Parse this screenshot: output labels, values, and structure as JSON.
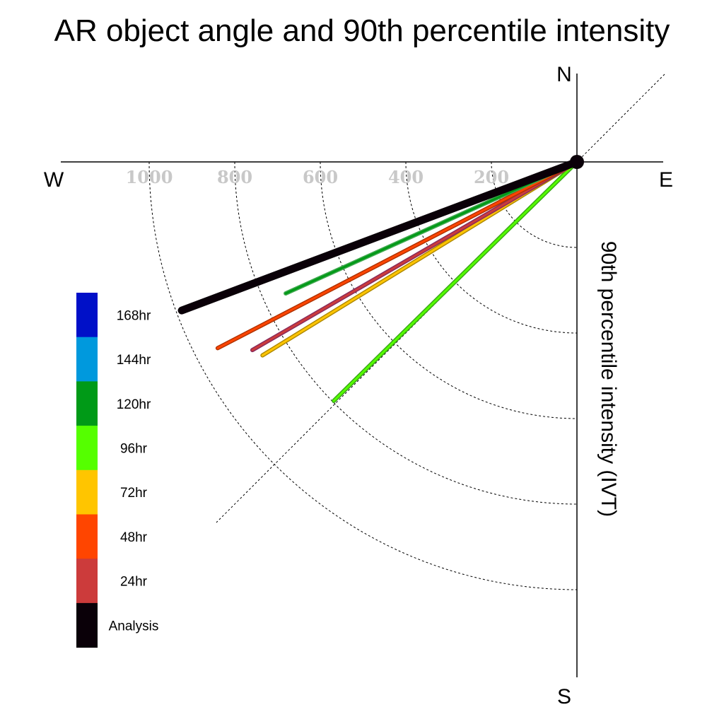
{
  "chart_data": {
    "type": "polar-vector",
    "title": "AR object angle and 90th percentile intensity",
    "ylabel": "90th percentile intensity (IVT)",
    "compass": {
      "north": "N",
      "south": "S",
      "east": "E",
      "west": "W"
    },
    "radial_ticks": [
      200,
      400,
      600,
      800,
      1000
    ],
    "radial_tick_labels": [
      "200",
      "400",
      "600",
      "800",
      "1000"
    ],
    "radial_grid": [
      200,
      400,
      600,
      800,
      1000
    ],
    "rlim": [
      0,
      1200
    ],
    "legend": {
      "placement": "left",
      "entries": [
        {
          "label": "168hr",
          "color": "#0010c8"
        },
        {
          "label": "144hr",
          "color": "#0099dd"
        },
        {
          "label": "120hr",
          "color": "#009a17"
        },
        {
          "label": "96hr",
          "color": "#55ff00"
        },
        {
          "label": "72hr",
          "color": "#ffc500"
        },
        {
          "label": "48hr",
          "color": "#ff4500"
        },
        {
          "label": "24hr",
          "color": "#cc3b3b"
        },
        {
          "label": "Analysis",
          "color": "#0a0008"
        }
      ]
    },
    "series": [
      {
        "name": "96hr",
        "angle_deg": 225.5,
        "value": 797,
        "color": "#55ff00",
        "outline": "#3aa817"
      },
      {
        "name": "72hr",
        "angle_deg": 238.4,
        "value": 863,
        "color": "#ffc500",
        "outline": "#b08a00"
      },
      {
        "name": "24hr",
        "angle_deg": 239.9,
        "value": 877,
        "color": "#cc3b3b",
        "outline": "#8a2a5a"
      },
      {
        "name": "48hr",
        "angle_deg": 242.6,
        "value": 946,
        "color": "#ff4500",
        "outline": "#b03200"
      },
      {
        "name": "120hr",
        "angle_deg": 245.7,
        "value": 747,
        "color": "#009a17",
        "outline": "#3fa84e"
      },
      {
        "name": "Analysis",
        "angle_deg": 249.4,
        "value": 987,
        "color": "#0a0008",
        "outline": "#0a0008"
      }
    ]
  }
}
